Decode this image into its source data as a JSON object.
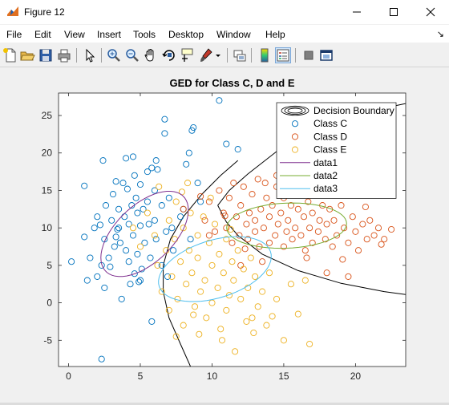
{
  "window": {
    "title": "Figure 12"
  },
  "menu": {
    "items": [
      "File",
      "Edit",
      "View",
      "Insert",
      "Tools",
      "Desktop",
      "Window",
      "Help"
    ],
    "dock_arrow": "↘"
  },
  "toolbar": {
    "buttons": [
      "new-figure-icon",
      "open-file-icon",
      "save-icon",
      "print-icon",
      "edit-plot-arrow-icon",
      "zoom-in-icon",
      "zoom-out-icon",
      "pan-hand-icon",
      "rotate-3d-icon",
      "data-cursor-icon",
      "brush-icon",
      "link-plot-icon",
      "insert-colorbar-icon",
      "insert-legend-icon",
      "hide-plot-tools-icon",
      "show-plot-tools-icon"
    ]
  },
  "colors": {
    "classC": "#0072BD",
    "classD": "#D95319",
    "classE": "#EDB120",
    "data1": "#7E2F8E",
    "data2": "#77AC30",
    "data3": "#4DBEEE",
    "boundary": "#000000"
  },
  "chart_data": {
    "type": "scatter",
    "title": "GED for Class C, D and E",
    "xlim": [
      -0.7,
      23.5
    ],
    "ylim": [
      -8.5,
      28
    ],
    "xticks": [
      0,
      5,
      10,
      15,
      20
    ],
    "yticks": [
      -5,
      0,
      5,
      10,
      15,
      20,
      25
    ],
    "grid": false,
    "legend_position": "top-right",
    "legend": [
      "Decision Boundary",
      "Class C",
      "Class D",
      "Class E",
      "data1",
      "data2",
      "data3"
    ],
    "series": [
      {
        "name": "Class C",
        "points": [
          [
            0.2,
            5.5
          ],
          [
            1.1,
            8.8
          ],
          [
            1.1,
            15.6
          ],
          [
            1.3,
            3.0
          ],
          [
            1.5,
            6.0
          ],
          [
            1.8,
            10.0
          ],
          [
            2.0,
            3.5
          ],
          [
            2.0,
            11.5
          ],
          [
            2.2,
            10.4
          ],
          [
            2.3,
            -7.5
          ],
          [
            2.4,
            19.0
          ],
          [
            2.5,
            8.5
          ],
          [
            2.5,
            2.0
          ],
          [
            2.6,
            13.0
          ],
          [
            2.8,
            6.0
          ],
          [
            2.9,
            4.8
          ],
          [
            3.0,
            11.0
          ],
          [
            3.1,
            14.5
          ],
          [
            3.2,
            7.5
          ],
          [
            3.3,
            16.2
          ],
          [
            3.4,
            9.8
          ],
          [
            3.5,
            12.5
          ],
          [
            3.5,
            10.0
          ],
          [
            3.6,
            8.0
          ],
          [
            3.7,
            0.5
          ],
          [
            3.8,
            16.0
          ],
          [
            3.9,
            11.5
          ],
          [
            4.0,
            19.3
          ],
          [
            4.0,
            7.0
          ],
          [
            4.1,
            15.2
          ],
          [
            4.2,
            10.5
          ],
          [
            4.2,
            5.5
          ],
          [
            4.3,
            2.5
          ],
          [
            4.4,
            13.0
          ],
          [
            4.5,
            19.5
          ],
          [
            4.5,
            9.0
          ],
          [
            4.6,
            17.0
          ],
          [
            4.7,
            14.0
          ],
          [
            4.8,
            12.0
          ],
          [
            4.8,
            6.5
          ],
          [
            4.9,
            2.8
          ],
          [
            5.0,
            10.3
          ],
          [
            5.0,
            15.8
          ],
          [
            5.1,
            4.5
          ],
          [
            5.2,
            12.5
          ],
          [
            5.3,
            8.0
          ],
          [
            5.5,
            17.5
          ],
          [
            5.5,
            13.5
          ],
          [
            5.6,
            10.5
          ],
          [
            5.7,
            6.0
          ],
          [
            5.8,
            18.0
          ],
          [
            5.8,
            -2.5
          ],
          [
            6.0,
            15.0
          ],
          [
            6.0,
            11.0
          ],
          [
            6.1,
            8.5
          ],
          [
            6.2,
            17.8
          ],
          [
            6.5,
            5.0
          ],
          [
            6.5,
            13.0
          ],
          [
            6.7,
            24.5
          ],
          [
            6.7,
            22.6
          ],
          [
            6.8,
            9.5
          ],
          [
            6.9,
            3.5
          ],
          [
            7.0,
            14.0
          ],
          [
            7.2,
            10.0
          ],
          [
            7.3,
            7.0
          ],
          [
            7.8,
            11.5
          ],
          [
            8.0,
            12.5
          ],
          [
            8.2,
            18.5
          ],
          [
            8.5,
            8.5
          ],
          [
            9.0,
            16.0
          ],
          [
            9.2,
            13.5
          ],
          [
            8.4,
            20.0
          ],
          [
            8.6,
            23.0
          ],
          [
            8.7,
            23.4
          ],
          [
            10.5,
            27.0
          ],
          [
            11.0,
            21.2
          ],
          [
            11.8,
            20.5
          ],
          [
            6.1,
            19.0
          ],
          [
            5.0,
            3.0
          ],
          [
            3.3,
            8.8
          ],
          [
            2.3,
            5.0
          ],
          [
            4.6,
            3.9
          ]
        ],
        "color": "#0072BD"
      },
      {
        "name": "Class D",
        "points": [
          [
            8.0,
            12.5
          ],
          [
            9.5,
            11.0
          ],
          [
            9.8,
            13.5
          ],
          [
            10.2,
            9.5
          ],
          [
            10.5,
            15.0
          ],
          [
            10.8,
            12.0
          ],
          [
            11.0,
            10.0
          ],
          [
            11.2,
            14.0
          ],
          [
            11.4,
            8.0
          ],
          [
            11.5,
            16.0
          ],
          [
            11.7,
            11.5
          ],
          [
            11.9,
            9.0
          ],
          [
            12.0,
            13.0
          ],
          [
            12.2,
            15.5
          ],
          [
            12.4,
            10.5
          ],
          [
            12.5,
            8.5
          ],
          [
            12.6,
            12.0
          ],
          [
            12.8,
            14.5
          ],
          [
            13.0,
            9.5
          ],
          [
            13.0,
            11.0
          ],
          [
            13.2,
            16.5
          ],
          [
            13.3,
            7.5
          ],
          [
            13.4,
            12.5
          ],
          [
            13.6,
            10.0
          ],
          [
            13.8,
            14.0
          ],
          [
            14.0,
            8.0
          ],
          [
            14.0,
            11.5
          ],
          [
            14.2,
            13.0
          ],
          [
            14.4,
            9.0
          ],
          [
            14.5,
            15.5
          ],
          [
            14.6,
            10.5
          ],
          [
            14.8,
            12.0
          ],
          [
            15.0,
            7.5
          ],
          [
            15.0,
            14.0
          ],
          [
            15.2,
            9.5
          ],
          [
            15.3,
            11.0
          ],
          [
            15.5,
            13.0
          ],
          [
            15.6,
            8.5
          ],
          [
            15.8,
            10.0
          ],
          [
            16.0,
            12.5
          ],
          [
            16.0,
            15.0
          ],
          [
            16.2,
            9.0
          ],
          [
            16.4,
            11.5
          ],
          [
            16.5,
            7.0
          ],
          [
            16.7,
            13.5
          ],
          [
            16.8,
            10.0
          ],
          [
            17.0,
            8.0
          ],
          [
            17.0,
            12.0
          ],
          [
            17.2,
            14.5
          ],
          [
            17.4,
            9.5
          ],
          [
            17.5,
            11.0
          ],
          [
            17.7,
            13.0
          ],
          [
            17.9,
            8.5
          ],
          [
            18.0,
            10.5
          ],
          [
            18.2,
            12.5
          ],
          [
            18.4,
            7.5
          ],
          [
            18.5,
            11.0
          ],
          [
            18.7,
            9.0
          ],
          [
            19.0,
            13.0
          ],
          [
            19.2,
            10.0
          ],
          [
            19.5,
            8.0
          ],
          [
            19.8,
            11.5
          ],
          [
            20.0,
            9.5
          ],
          [
            20.2,
            7.0
          ],
          [
            20.5,
            10.5
          ],
          [
            20.8,
            8.5
          ],
          [
            21.0,
            11.0
          ],
          [
            21.3,
            9.0
          ],
          [
            21.6,
            10.0
          ],
          [
            22.0,
            8.5
          ],
          [
            22.5,
            9.8
          ],
          [
            18.0,
            4.0
          ],
          [
            19.5,
            3.5
          ],
          [
            13.5,
            5.5
          ],
          [
            12.0,
            5.0
          ],
          [
            14.5,
            17.0
          ],
          [
            9.2,
            14.2
          ],
          [
            9.8,
            9.0
          ],
          [
            10.9,
            11.6
          ],
          [
            12.3,
            7.2
          ],
          [
            13.7,
            16.0
          ],
          [
            15.9,
            16.3
          ],
          [
            16.6,
            6.0
          ],
          [
            17.3,
            15.8
          ],
          [
            19.1,
            5.8
          ],
          [
            20.7,
            12.8
          ],
          [
            21.8,
            7.8
          ]
        ],
        "color": "#D95319"
      },
      {
        "name": "Class E",
        "points": [
          [
            4.5,
            10.0
          ],
          [
            5.0,
            7.5
          ],
          [
            5.5,
            12.0
          ],
          [
            6.0,
            9.0
          ],
          [
            6.2,
            5.0
          ],
          [
            6.5,
            1.5
          ],
          [
            6.8,
            7.0
          ],
          [
            7.0,
            11.0
          ],
          [
            7.0,
            -1.0
          ],
          [
            7.2,
            3.5
          ],
          [
            7.4,
            8.5
          ],
          [
            7.5,
            13.5
          ],
          [
            7.6,
            0.5
          ],
          [
            7.8,
            5.5
          ],
          [
            8.0,
            10.0
          ],
          [
            8.0,
            -3.0
          ],
          [
            8.2,
            2.5
          ],
          [
            8.4,
            7.0
          ],
          [
            8.5,
            12.0
          ],
          [
            8.6,
            4.0
          ],
          [
            8.8,
            -0.5
          ],
          [
            9.0,
            9.0
          ],
          [
            9.0,
            6.0
          ],
          [
            9.2,
            1.5
          ],
          [
            9.4,
            11.5
          ],
          [
            9.5,
            3.0
          ],
          [
            9.6,
            -2.0
          ],
          [
            9.8,
            8.0
          ],
          [
            10.0,
            5.0
          ],
          [
            10.0,
            0.0
          ],
          [
            10.2,
            10.5
          ],
          [
            10.4,
            2.0
          ],
          [
            10.5,
            6.5
          ],
          [
            10.6,
            -3.5
          ],
          [
            10.8,
            4.0
          ],
          [
            11.0,
            8.5
          ],
          [
            11.0,
            -1.0
          ],
          [
            11.2,
            1.0
          ],
          [
            11.4,
            5.5
          ],
          [
            11.5,
            3.0
          ],
          [
            11.6,
            -6.5
          ],
          [
            11.8,
            7.0
          ],
          [
            12.0,
            0.5
          ],
          [
            12.2,
            4.5
          ],
          [
            12.4,
            -2.5
          ],
          [
            12.5,
            2.0
          ],
          [
            12.7,
            6.0
          ],
          [
            12.9,
            -4.0
          ],
          [
            13.0,
            3.5
          ],
          [
            13.2,
            -0.5
          ],
          [
            13.5,
            1.5
          ],
          [
            13.8,
            -3.0
          ],
          [
            14.0,
            4.0
          ],
          [
            14.5,
            0.5
          ],
          [
            15.0,
            -5.0
          ],
          [
            15.5,
            2.5
          ],
          [
            16.0,
            -1.5
          ],
          [
            16.5,
            3.0
          ],
          [
            16.8,
            -5.5
          ],
          [
            7.5,
            -4.5
          ],
          [
            8.3,
            16.0
          ],
          [
            9.9,
            14.0
          ],
          [
            6.3,
            15.5
          ],
          [
            12.8,
            -2.0
          ],
          [
            10.7,
            -5.0
          ],
          [
            14.2,
            -1.8
          ],
          [
            8.7,
            -1.6
          ],
          [
            11.3,
            9.8
          ],
          [
            9.1,
            -4.2
          ],
          [
            7.9,
            14.8
          ]
        ],
        "color": "#EDB120"
      }
    ],
    "ellipses": [
      {
        "name": "data1",
        "cx": 5.3,
        "cy": 9.2,
        "rx": 2.4,
        "ry": 6.0,
        "angle_deg": -20,
        "color": "#7E2F8E"
      },
      {
        "name": "data2",
        "cx": 15.2,
        "cy": 10.3,
        "rx": 4.2,
        "ry": 3.0,
        "angle_deg": 8,
        "color": "#77AC30"
      },
      {
        "name": "data3",
        "cx": 10.2,
        "cy": 4.5,
        "rx": 3.2,
        "ry": 4.9,
        "angle_deg": -38,
        "color": "#4DBEEE"
      }
    ],
    "boundaries": [
      {
        "name": "Decision Boundary",
        "points": [
          [
            8.5,
            -8.5
          ],
          [
            7.8,
            -5.5
          ],
          [
            7.0,
            -2.0
          ],
          [
            6.6,
            1.5
          ],
          [
            6.6,
            5.0
          ],
          [
            7.1,
            8.5
          ],
          [
            8.0,
            11.5
          ],
          [
            9.3,
            14.5
          ],
          [
            10.6,
            17.0
          ],
          [
            11.8,
            19.0
          ]
        ]
      },
      {
        "name": "Decision Boundary",
        "points": [
          [
            10.4,
            13.0
          ],
          [
            11.0,
            10.8
          ],
          [
            11.8,
            9.0
          ],
          [
            13.5,
            6.5
          ],
          [
            16.0,
            4.3
          ],
          [
            19.0,
            2.6
          ],
          [
            22.0,
            1.5
          ],
          [
            23.5,
            1.1
          ]
        ]
      },
      {
        "name": "Decision Boundary",
        "points": [
          [
            10.4,
            13.0
          ],
          [
            11.2,
            15.0
          ],
          [
            12.5,
            17.2
          ],
          [
            14.5,
            20.2
          ],
          [
            16.5,
            22.5
          ],
          [
            19.0,
            24.5
          ],
          [
            21.5,
            25.8
          ],
          [
            23.5,
            26.6
          ]
        ]
      }
    ]
  }
}
